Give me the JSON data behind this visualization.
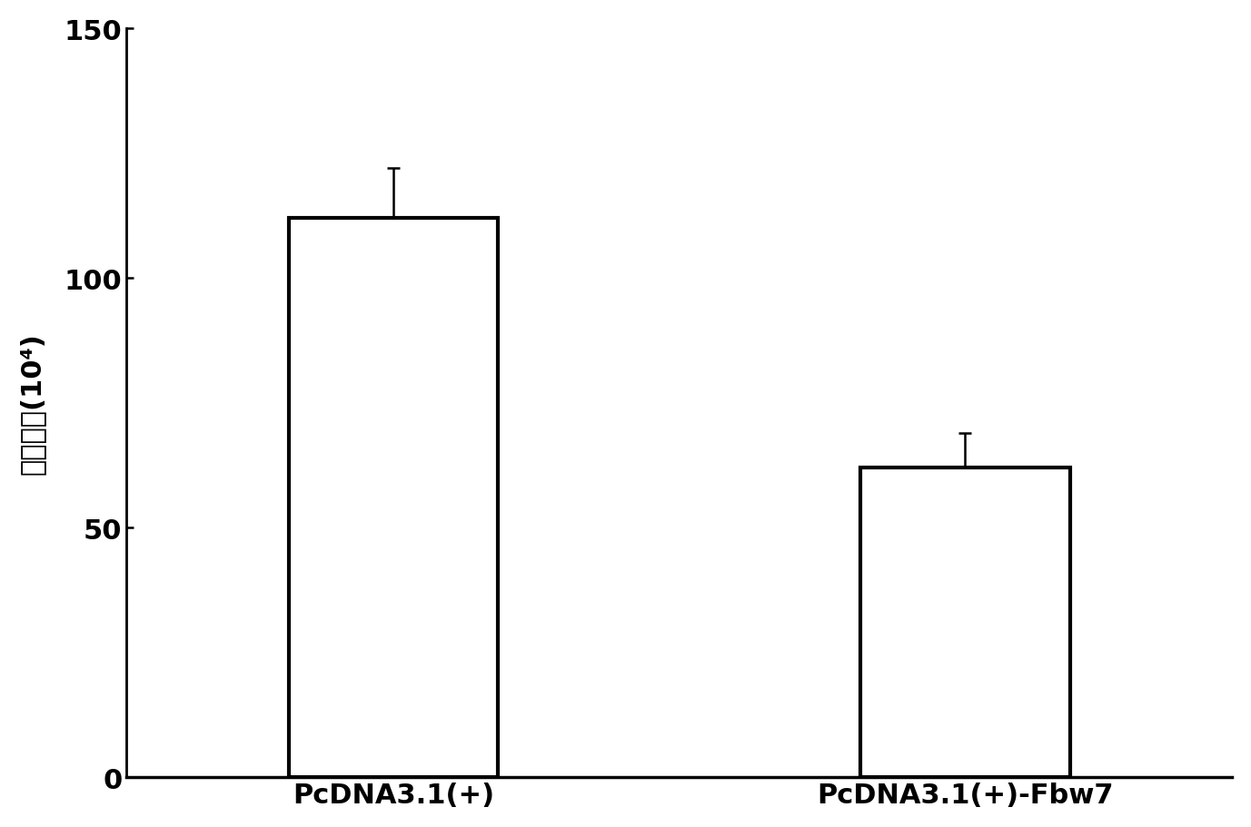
{
  "categories": [
    "PcDNA3.1(+)",
    "PcDNA3.1(+)-Fbw7"
  ],
  "values": [
    112,
    62
  ],
  "errors": [
    10,
    7
  ],
  "bar_color": "#ffffff",
  "bar_edgecolor": "#000000",
  "bar_linewidth": 3.0,
  "bar_width": 0.55,
  "bar_positions": [
    1,
    2.5
  ],
  "ylabel_chinese": "细胞数量",
  "ylabel_super": "(10⁴)",
  "ylim": [
    0,
    150
  ],
  "yticks": [
    0,
    50,
    100,
    150
  ],
  "background_color": "#ffffff",
  "capsize": 5,
  "errorbar_linewidth": 1.8,
  "tick_fontsize": 22,
  "ylabel_fontsize": 22,
  "xlabel_fontsize": 22,
  "xlim": [
    0.3,
    3.2
  ]
}
